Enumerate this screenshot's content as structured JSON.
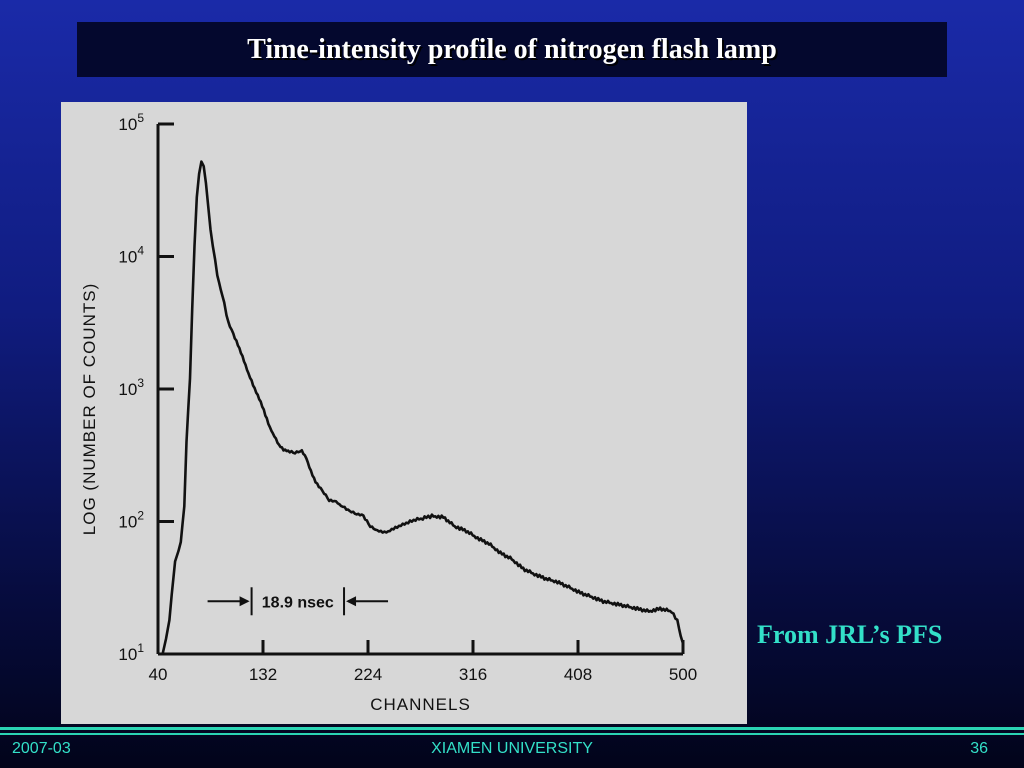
{
  "slide": {
    "title": "Time-intensity profile of nitrogen flash lamp",
    "caption": "From JRL’s PFS",
    "footer_left": "2007-03",
    "footer_center": "XIAMEN UNIVERSITY",
    "footer_right": "36"
  },
  "colors": {
    "title_bar": "#04082e",
    "accent": "#33e0c8",
    "figure_bg": "#d7d7d7",
    "trace": "#111111"
  },
  "chart_data": {
    "type": "line",
    "title": "",
    "xlabel": "CHANNELS",
    "ylabel": "LOG (NUMBER OF COUNTS)",
    "xlim": [
      40,
      500
    ],
    "ylim": [
      10,
      100000
    ],
    "y_scale": "log",
    "grid": false,
    "x_ticks": [
      40,
      132,
      224,
      316,
      408,
      500
    ],
    "x_tick_labels": [
      "40",
      "132",
      "224",
      "316",
      "408",
      "500"
    ],
    "y_ticks": [
      10,
      100,
      1000,
      10000,
      100000
    ],
    "y_tick_labels": [
      {
        "base": "10",
        "exp": "1"
      },
      {
        "base": "10",
        "exp": "2"
      },
      {
        "base": "10",
        "exp": "3"
      },
      {
        "base": "10",
        "exp": "4"
      },
      {
        "base": "10",
        "exp": "5"
      }
    ],
    "annotation": {
      "text": "18.9 nsec",
      "from_x": 122,
      "to_x": 203,
      "y": 25
    },
    "series": [
      {
        "x": [
          44,
          47,
          50,
          52,
          55,
          58,
          60,
          63,
          65,
          68,
          70,
          72,
          74,
          76,
          78,
          80,
          82,
          84,
          86,
          88,
          90,
          92,
          95,
          98,
          100,
          103,
          106,
          110,
          114,
          118,
          122,
          126,
          130,
          134,
          138,
          142,
          146,
          150,
          154,
          160,
          166,
          170,
          174,
          178,
          184,
          190,
          196,
          202,
          208,
          214,
          220,
          226,
          232,
          240,
          248,
          256,
          264,
          272,
          280,
          290,
          300,
          310,
          320,
          330,
          340,
          350,
          360,
          370,
          380,
          390,
          400,
          410,
          420,
          430,
          440,
          450,
          460,
          470,
          480,
          490,
          495,
          498,
          500
        ],
        "y": [
          10,
          13,
          18,
          28,
          50,
          60,
          70,
          130,
          400,
          1200,
          4000,
          12000,
          28000,
          42000,
          52000,
          48000,
          36000,
          24000,
          16000,
          12000,
          9500,
          7200,
          5600,
          4500,
          3600,
          3000,
          2600,
          2150,
          1750,
          1400,
          1150,
          950,
          800,
          640,
          510,
          440,
          380,
          350,
          340,
          330,
          340,
          300,
          240,
          200,
          170,
          145,
          140,
          130,
          120,
          115,
          110,
          92,
          85,
          83,
          90,
          96,
          102,
          106,
          110,
          108,
          92,
          85,
          75,
          68,
          58,
          52,
          44,
          40,
          37,
          35,
          32,
          29,
          27,
          25,
          24,
          23,
          22,
          21,
          22,
          21,
          18,
          14,
          12
        ]
      }
    ]
  }
}
